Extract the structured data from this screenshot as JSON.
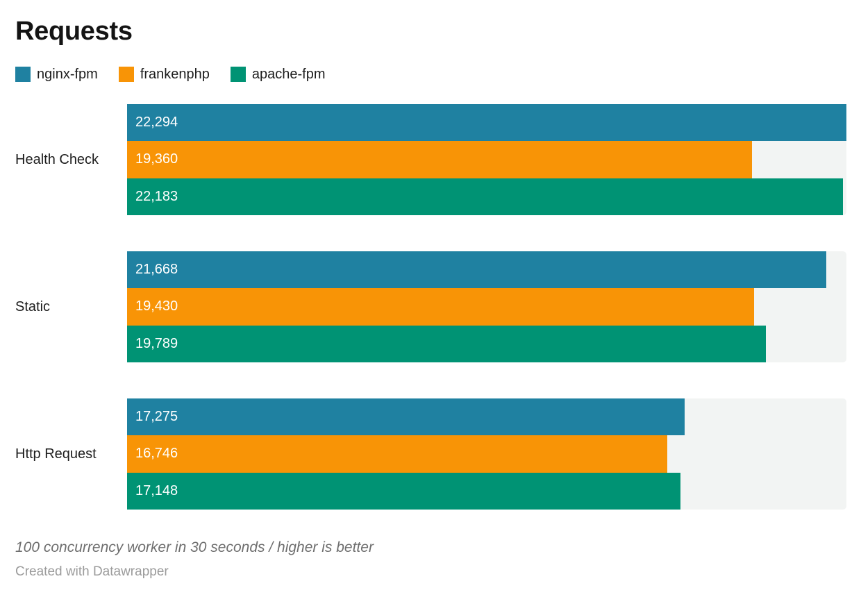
{
  "title": "Requests",
  "chart_data": {
    "type": "bar",
    "orientation": "horizontal",
    "grouped": true,
    "grid": false,
    "legend_position": "top",
    "value_labels_inside_bars": true,
    "axis_max": 22294,
    "track_color": "#f2f4f3",
    "categories": [
      "Health Check",
      "Static",
      "Http Request"
    ],
    "series": [
      {
        "name": "nginx-fpm",
        "color": "#1f81a1",
        "values": [
          22294,
          21668,
          17275
        ],
        "value_labels": [
          "22,294",
          "21,668",
          "17,275"
        ]
      },
      {
        "name": "frankenphp",
        "color": "#f89406",
        "values": [
          19360,
          19430,
          16746
        ],
        "value_labels": [
          "19,360",
          "19,430",
          "16,746"
        ]
      },
      {
        "name": "apache-fpm",
        "color": "#009374",
        "values": [
          22183,
          19789,
          17148
        ],
        "value_labels": [
          "22,183",
          "19,789",
          "17,148"
        ]
      }
    ]
  },
  "footer": {
    "note": "100 concurrency worker in 30 seconds / higher is better",
    "attribution": "Created with Datawrapper"
  }
}
